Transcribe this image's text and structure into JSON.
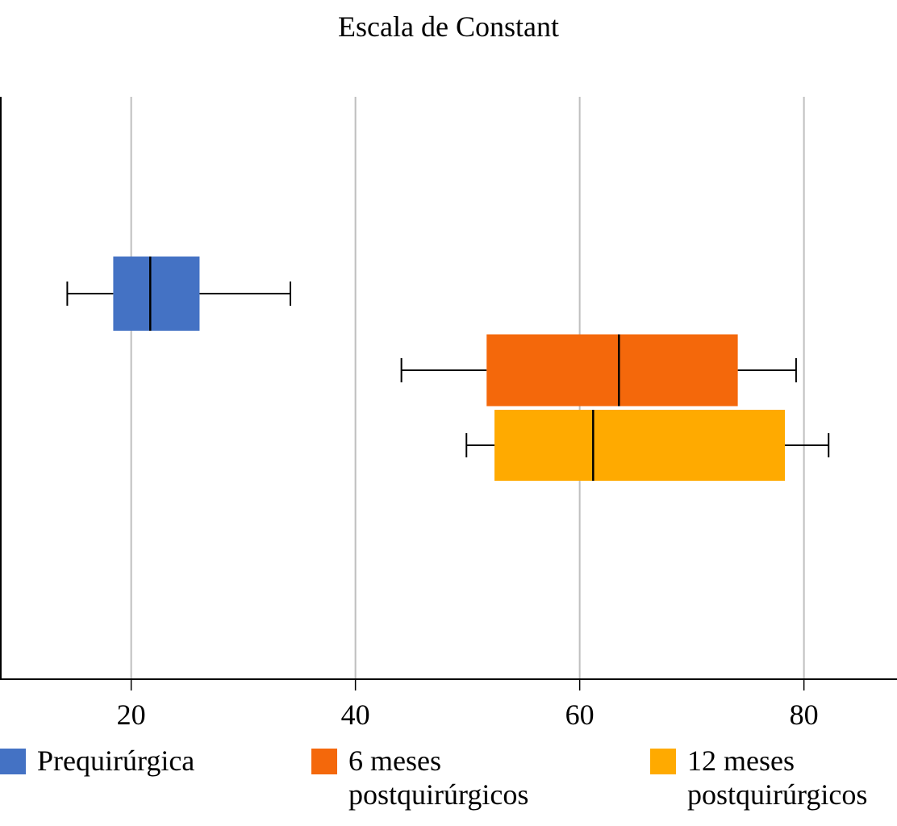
{
  "chart_data": {
    "type": "boxplot",
    "orientation": "horizontal",
    "title": "Escala de Constant",
    "xlabel": "",
    "ylabel": "",
    "xlim": [
      8.3,
      88.3
    ],
    "xticks": [
      20,
      40,
      60,
      80
    ],
    "xtick_labels": [
      "20",
      "40",
      "60",
      "80"
    ],
    "grid": "vertical",
    "legend_position": "bottom",
    "series": [
      {
        "name": "Prequirúrgica",
        "color": "#4472C4",
        "whisker_low": 14.3,
        "q1": 18.4,
        "median": 21.7,
        "q3": 26.1,
        "whisker_high": 34.2
      },
      {
        "name": "6 meses postquirúrgicos",
        "color": "#F4680B",
        "whisker_low": 44.1,
        "q1": 51.7,
        "median": 63.5,
        "q3": 74.1,
        "whisker_high": 79.3
      },
      {
        "name": "12 meses postquirúrgicos",
        "color": "#FFAA00",
        "whisker_low": 49.9,
        "q1": 52.4,
        "median": 61.2,
        "q3": 78.3,
        "whisker_high": 82.2
      }
    ]
  }
}
